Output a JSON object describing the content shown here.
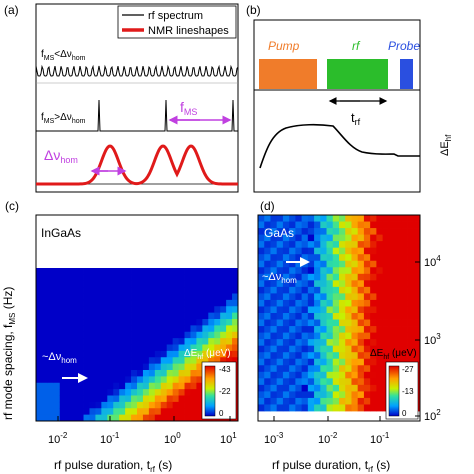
{
  "panels": {
    "a": {
      "label": "(a)",
      "legend": {
        "rf": "rf spectrum",
        "nmr": "NMR lineshapes"
      },
      "cond_low": {
        "main": "f",
        "sub": "MS",
        "rel": "<Δν",
        "sub2": "hom"
      },
      "cond_high": {
        "main": "f",
        "sub": "MS",
        "rel": ">Δν",
        "sub2": "hom"
      },
      "fms": {
        "main": "f",
        "sub": "MS"
      },
      "dnu": {
        "main": "Δν",
        "sub": "hom"
      }
    },
    "b": {
      "label": "(b)",
      "pump": "Pump",
      "rf": "rf",
      "probe": "Probe",
      "trf": {
        "main": "t",
        "sub": "rf"
      },
      "dehf": {
        "main": "ΔE",
        "sub": "hf"
      }
    },
    "c": {
      "label": "(c)",
      "material": "InGaAs",
      "dnu": {
        "pre": "~Δν",
        "sub": "hom"
      },
      "colorbar": {
        "title": "ΔE",
        "sub": "hf",
        "unit": " (μeV)",
        "ticks": [
          "-43",
          "-22",
          "0"
        ]
      },
      "xticks": [
        {
          "base": "10",
          "exp": "-2"
        },
        {
          "base": "10",
          "exp": "-1"
        },
        {
          "base": "10",
          "exp": "0"
        },
        {
          "base": "10",
          "exp": "1"
        }
      ],
      "xlabel": {
        "main": "rf pulse duration, t",
        "sub": "rf",
        "unit": " (s)"
      },
      "ylabel": {
        "main": "rf mode spacing, f",
        "sub": "MS",
        "unit": " (Hz)"
      }
    },
    "d": {
      "label": "(d)",
      "material": "GaAs",
      "dnu": {
        "pre": "~Δν",
        "sub": "hom"
      },
      "colorbar": {
        "title": "ΔE",
        "sub": "hf",
        "unit": " (μeV)",
        "ticks": [
          "-27",
          "-13",
          "0"
        ]
      },
      "xticks": [
        {
          "base": "10",
          "exp": "-3"
        },
        {
          "base": "10",
          "exp": "-2"
        },
        {
          "base": "10",
          "exp": "-1"
        }
      ],
      "xlabel": {
        "main": "rf pulse duration, t",
        "sub": "rf",
        "unit": " (s)"
      },
      "yticks": [
        {
          "base": "10",
          "exp": "2"
        },
        {
          "base": "10",
          "exp": "3"
        },
        {
          "base": "10",
          "exp": "4"
        }
      ]
    }
  },
  "colors": {
    "pump": "#f07c2a",
    "rf": "#2bbd2b",
    "probe": "#2a4fe0",
    "nmr": "#e01a1a",
    "arrow": "#c040e0"
  }
}
